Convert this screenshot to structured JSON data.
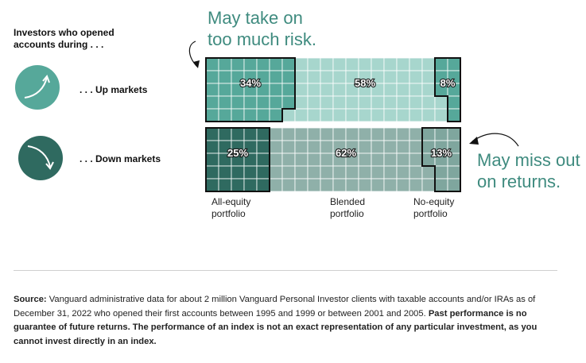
{
  "header": {
    "line1": "Investors who opened",
    "line2": "accounts during . . ."
  },
  "rows": [
    {
      "label": ". . . Up markets",
      "icon": "arrow-up-icon"
    },
    {
      "label": ". . . Down markets",
      "icon": "arrow-down-icon"
    }
  ],
  "callouts": {
    "top": {
      "line1": "May take on",
      "line2": "too much risk."
    },
    "right": {
      "line1": "May miss out",
      "line2": "on returns."
    }
  },
  "column_labels": [
    {
      "line1": "All-equity",
      "line2": "portfolio"
    },
    {
      "line1": "Blended",
      "line2": "portfolio"
    },
    {
      "line1": "No-equity",
      "line2": "portfolio"
    }
  ],
  "colors": {
    "up_dark": "#56a89a",
    "up_light": "#a7d6cd",
    "down_dark": "#2f6a60",
    "down_mid": "#8fb0a9",
    "down_light": "#7fa69e",
    "outline": "#111111",
    "callout_text": "#3f8b7f"
  },
  "chart_data": {
    "type": "bar",
    "orientation": "horizontal-stacked",
    "categories": [
      "Up markets",
      "Down markets"
    ],
    "series": [
      {
        "name": "All-equity portfolio",
        "values": [
          34,
          25
        ],
        "labels": [
          "34%",
          "25%"
        ]
      },
      {
        "name": "Blended portfolio",
        "values": [
          58,
          62
        ],
        "labels": [
          "58%",
          "62%"
        ]
      },
      {
        "name": "No-equity portfolio",
        "values": [
          8,
          13
        ],
        "labels": [
          "8%",
          "13%"
        ]
      }
    ],
    "unit": "%",
    "total": 100
  },
  "footer": {
    "source_label": "Source:",
    "source_text": " Vanguard administrative data for about 2 million Vanguard Personal Investor clients with taxable accounts and/or IRAs as of December 31, 2022 who opened their first accounts between 1995 and 1999 or between 2001 and 2005. ",
    "disclaimer": "Past performance is no guarantee of future returns. The performance of an index is not an exact representation of any particular investment, as you cannot invest directly in an index."
  }
}
